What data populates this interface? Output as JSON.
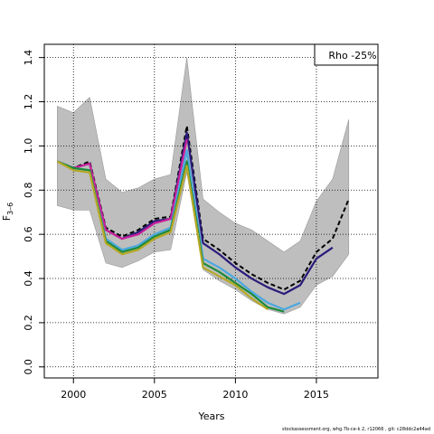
{
  "chart_data": {
    "type": "line",
    "title": "",
    "xlabel": "Years",
    "ylabel": "F",
    "ylabel_sub": "3–6",
    "xlim": [
      1998.2,
      2018.8
    ],
    "ylim": [
      -0.05,
      1.46
    ],
    "xticks": [
      "2000",
      "2005",
      "2010",
      "2015"
    ],
    "xtick_values": [
      2000,
      2005,
      2010,
      2015
    ],
    "yticks": [
      "0.0",
      "0.2",
      "0.4",
      "0.6",
      "0.8",
      "1.0",
      "1.2",
      "1.4"
    ],
    "ytick_values": [
      0,
      0.2,
      0.4,
      0.6,
      0.8,
      1.0,
      1.2,
      1.4
    ],
    "grid": true,
    "legend": {
      "label": "Rho -25%",
      "position": "top-right"
    },
    "confidence_band": {
      "color": "#bebebe",
      "x": [
        1999,
        2000,
        2001,
        2002,
        2003,
        2004,
        2005,
        2006,
        2007,
        2008,
        2009,
        2010,
        2011,
        2012,
        2013,
        2014,
        2015,
        2016,
        2017
      ],
      "upper": [
        1.18,
        1.15,
        1.22,
        0.85,
        0.79,
        0.81,
        0.85,
        0.87,
        1.4,
        0.76,
        0.7,
        0.65,
        0.62,
        0.57,
        0.52,
        0.57,
        0.75,
        0.85,
        1.12
      ],
      "lower": [
        0.73,
        0.71,
        0.71,
        0.47,
        0.45,
        0.48,
        0.52,
        0.53,
        0.88,
        0.44,
        0.39,
        0.35,
        0.3,
        0.26,
        0.24,
        0.27,
        0.37,
        0.41,
        0.51
      ]
    },
    "series": [
      {
        "color": "#000000",
        "dashed": true,
        "x": [
          1999,
          2000,
          2001,
          2002,
          2003,
          2004,
          2005,
          2006,
          2007,
          2008,
          2009,
          2010,
          2011,
          2012,
          2013,
          2014,
          2015,
          2016,
          2017
        ],
        "values": [
          0.93,
          0.9,
          0.93,
          0.63,
          0.59,
          0.62,
          0.67,
          0.68,
          1.09,
          0.58,
          0.53,
          0.47,
          0.42,
          0.38,
          0.35,
          0.39,
          0.52,
          0.58,
          0.76
        ]
      },
      {
        "color": "#2a1b7a",
        "dashed": false,
        "x": [
          1999,
          2000,
          2001,
          2002,
          2003,
          2004,
          2005,
          2006,
          2007,
          2008,
          2009,
          2010,
          2011,
          2012,
          2013,
          2014,
          2015,
          2016
        ],
        "values": [
          0.93,
          0.9,
          0.92,
          0.62,
          0.58,
          0.61,
          0.66,
          0.67,
          1.06,
          0.56,
          0.51,
          0.45,
          0.4,
          0.36,
          0.33,
          0.37,
          0.49,
          0.54
        ]
      },
      {
        "color": "#c81f9a",
        "dashed": false,
        "x": [
          1999,
          2000,
          2001,
          2002,
          2003,
          2004,
          2005,
          2006,
          2007
        ],
        "values": [
          0.93,
          0.9,
          0.92,
          0.62,
          0.58,
          0.6,
          0.65,
          0.67,
          1.03
        ]
      },
      {
        "color": "#4aa8e0",
        "dashed": false,
        "x": [
          1999,
          2000,
          2001,
          2002,
          2003,
          2004,
          2005,
          2006,
          2007,
          2008,
          2009,
          2010,
          2011,
          2012,
          2013,
          2014
        ],
        "values": [
          0.93,
          0.9,
          0.89,
          0.58,
          0.53,
          0.55,
          0.6,
          0.63,
          0.98,
          0.49,
          0.45,
          0.4,
          0.34,
          0.29,
          0.26,
          0.29
        ]
      },
      {
        "color": "#1d8a3a",
        "dashed": false,
        "x": [
          1999,
          2000,
          2001,
          2002,
          2003,
          2004,
          2005,
          2006,
          2007,
          2008,
          2009,
          2010,
          2011,
          2012,
          2013
        ],
        "values": [
          0.93,
          0.9,
          0.89,
          0.57,
          0.52,
          0.54,
          0.59,
          0.62,
          0.93,
          0.47,
          0.43,
          0.38,
          0.33,
          0.27,
          0.25
        ]
      },
      {
        "color": "#b5a826",
        "dashed": false,
        "x": [
          1999,
          2000,
          2001,
          2002,
          2003,
          2004,
          2005,
          2006,
          2007,
          2008,
          2009,
          2010,
          2011,
          2012
        ],
        "values": [
          0.93,
          0.89,
          0.88,
          0.56,
          0.51,
          0.53,
          0.58,
          0.61,
          0.91,
          0.45,
          0.41,
          0.37,
          0.31,
          0.26
        ]
      }
    ]
  },
  "footer": "stockassessment.org,  whg.7b-ce-k  2,  r12066 ,  git: c28ddc2a44ad"
}
